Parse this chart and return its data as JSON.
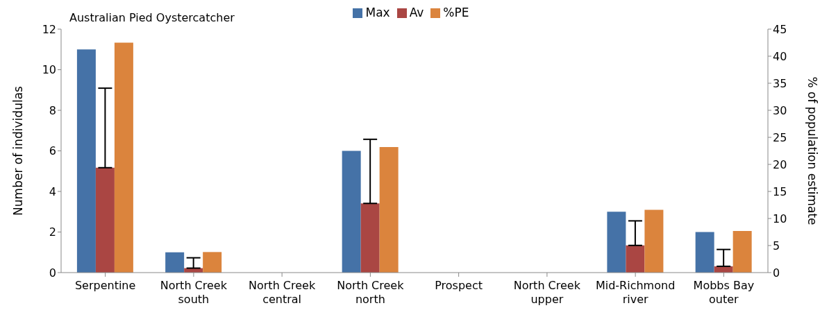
{
  "chart_data": {
    "type": "bar",
    "title": "Australian Pied Oystercatcher",
    "ylabel": "Number of individulas",
    "y2label": "% of population estimate",
    "categories": [
      "Serpentine",
      "North Creek south",
      "North Creek central",
      "North Creek north",
      "Prospect",
      "North Creek upper",
      "Mid-Richmond river",
      "Mobbs Bay outer"
    ],
    "series": [
      {
        "name": "Max",
        "color": "#4572a7",
        "values": [
          11,
          1,
          0,
          6,
          0,
          0,
          3,
          2
        ]
      },
      {
        "name": "Av",
        "color": "#aa4643",
        "values": [
          5.17,
          0.22,
          0,
          3.41,
          0,
          0,
          1.34,
          0.31
        ],
        "errors": [
          [
            5.17,
            9.09
          ],
          [
            0.22,
            0.73
          ],
          null,
          [
            3.41,
            6.57
          ],
          null,
          null,
          [
            1.34,
            2.55
          ],
          [
            0.31,
            1.14
          ]
        ]
      },
      {
        "name": "%PE",
        "color": "#db843d",
        "axis": "y2",
        "values": [
          42.5,
          3.8,
          0,
          23.2,
          0,
          0,
          11.6,
          7.7
        ]
      }
    ],
    "ylim": [
      0,
      12
    ],
    "yticks": [
      0,
      2,
      4,
      6,
      8,
      10,
      12
    ],
    "y2lim": [
      0,
      45
    ],
    "y2ticks": [
      0,
      5,
      10,
      15,
      20,
      25,
      30,
      35,
      40,
      45
    ],
    "grid": false,
    "legend": "top"
  }
}
